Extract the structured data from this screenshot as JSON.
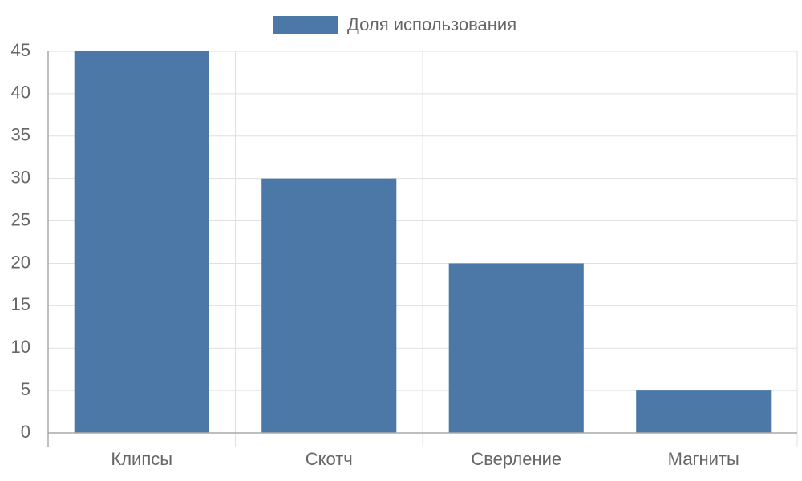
{
  "chart_data": {
    "type": "bar",
    "categories": [
      "Клипсы",
      "Скотч",
      "Сверление",
      "Магниты"
    ],
    "series": [
      {
        "name": "Доля использования",
        "color": "#4c78a8",
        "values": [
          45,
          30,
          20,
          5
        ]
      }
    ],
    "ylim": [
      0,
      45
    ],
    "yticks": [
      0,
      5,
      10,
      15,
      20,
      25,
      30,
      35,
      40,
      45
    ],
    "grid": true,
    "legend": "top"
  }
}
